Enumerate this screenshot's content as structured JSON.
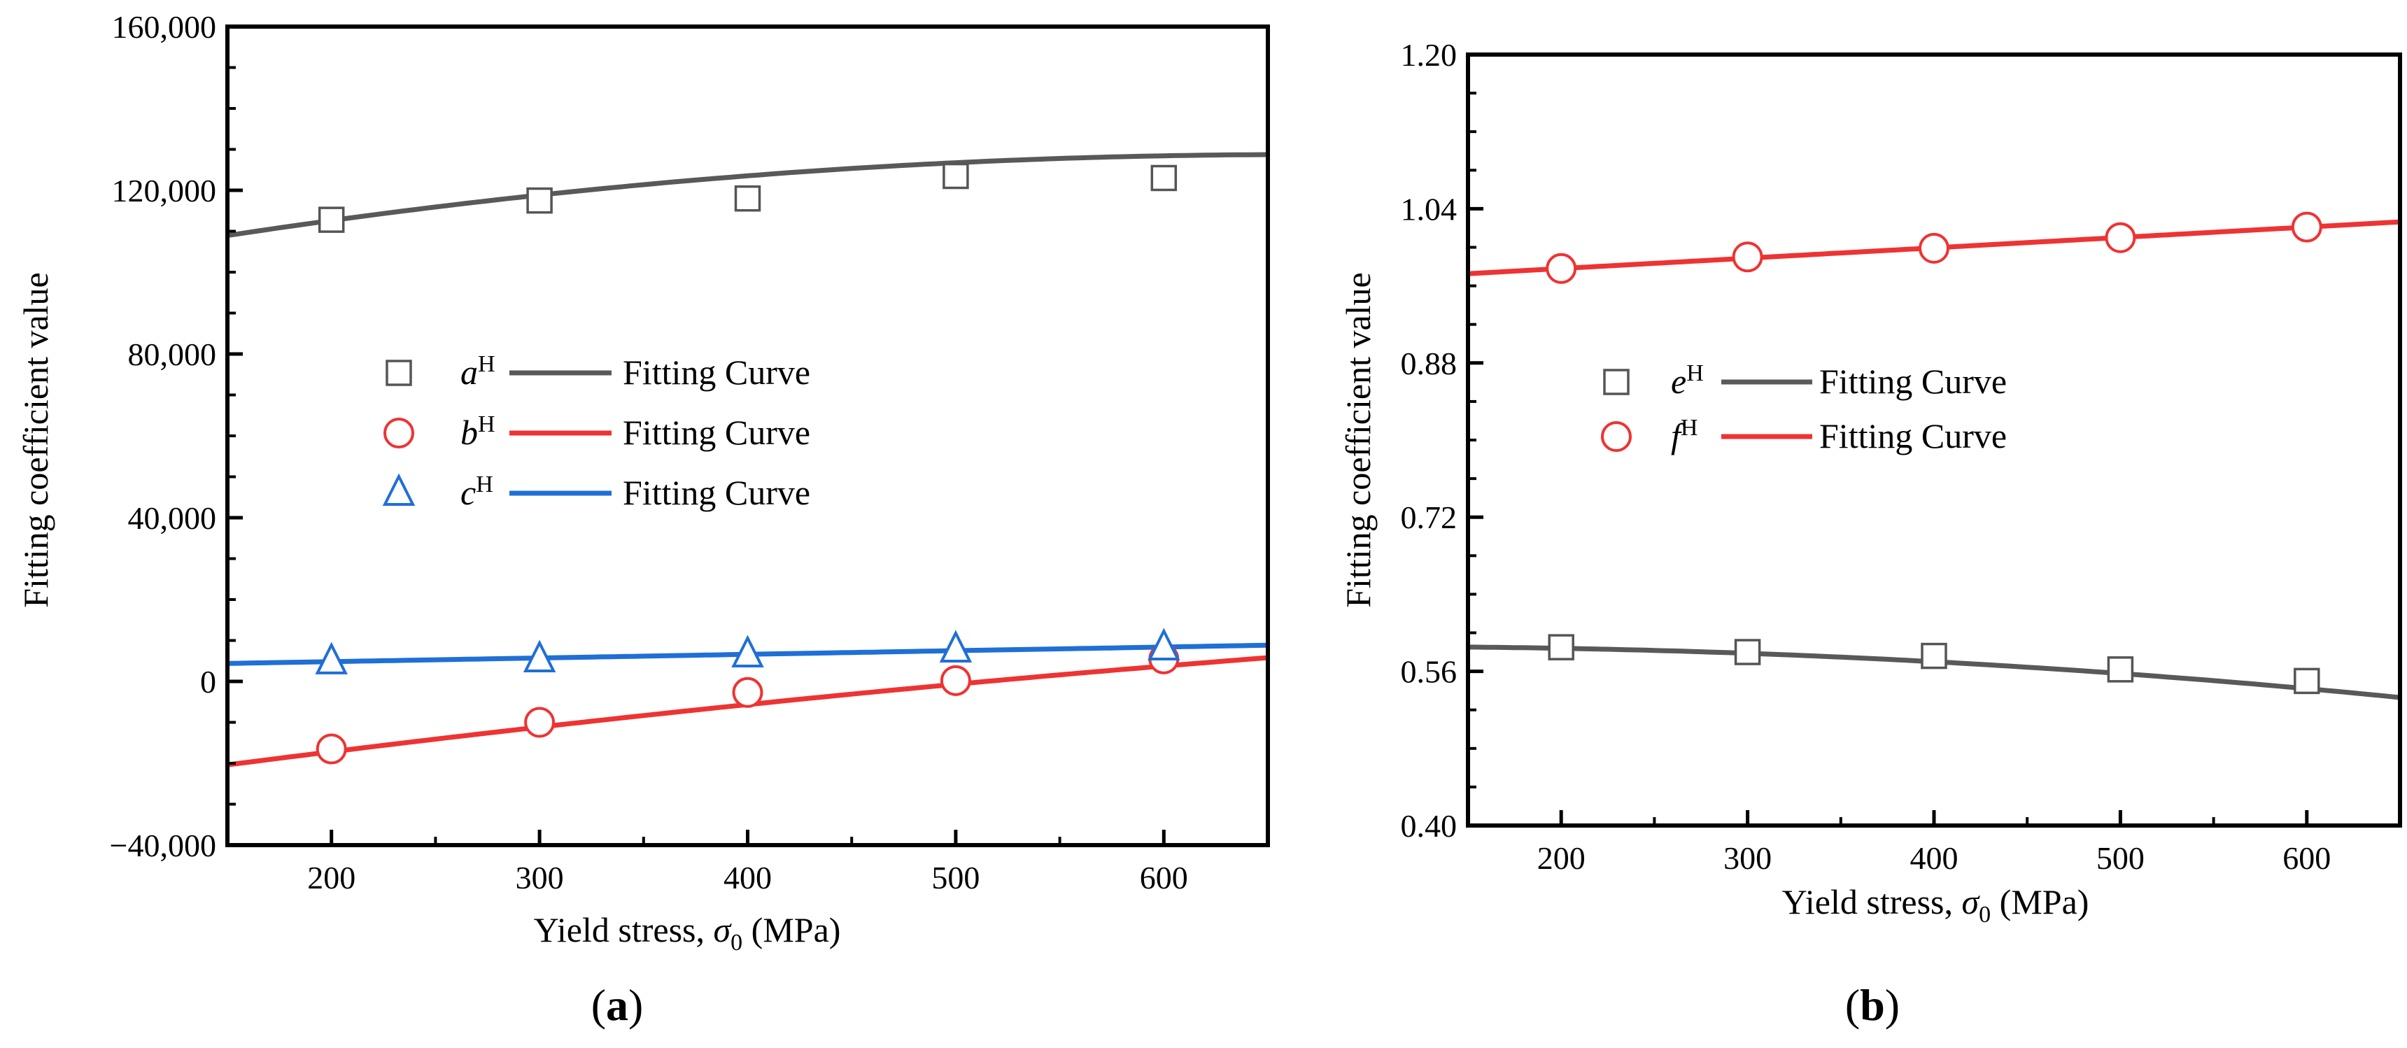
{
  "chart_data": [
    {
      "type": "scatter",
      "panel_label_parts": [
        "(",
        "a",
        ")"
      ],
      "xlabel": "Yield stress, σ0 (MPa)",
      "xlabel_parts": [
        "Yield stress, ",
        "σ",
        "0",
        " (MPa)"
      ],
      "ylabel": "Fitting coefficient value",
      "xlim": [
        150,
        650
      ],
      "ylim": [
        -40000,
        160000
      ],
      "x_ticks": [
        200,
        300,
        400,
        500,
        600
      ],
      "y_ticks": [
        -40000,
        0,
        40000,
        80000,
        120000,
        160000
      ],
      "y_tick_labels": [
        "−40,000",
        "0",
        "40,000",
        "80,000",
        "120,000",
        "160,000"
      ],
      "x_tick_labels": [
        "200",
        "300",
        "400",
        "500",
        "600"
      ],
      "legend_position": "center-left",
      "series": [
        {
          "name": "aH",
          "label_parts": [
            "a",
            "H"
          ],
          "fit_label": "Fitting Curve",
          "marker": "square",
          "color": "#595959",
          "x": [
            200,
            300,
            400,
            500,
            600
          ],
          "values": [
            112800,
            117500,
            118000,
            123500,
            123000
          ],
          "fit_poly": [
            95683,
            99.76,
            -0.0753
          ]
        },
        {
          "name": "bH",
          "label_parts": [
            "b",
            "H"
          ],
          "fit_label": "Fitting Curve",
          "marker": "circle",
          "color": "#ee3333",
          "x": [
            200,
            300,
            400,
            500,
            600
          ],
          "values": [
            -16500,
            -10000,
            -2700,
            200,
            5500
          ],
          "fit_poly": [
            -30810,
            73.4,
            -0.0263
          ]
        },
        {
          "name": "cH",
          "label_parts": [
            "c",
            "H"
          ],
          "fit_label": "Fitting Curve",
          "marker": "triangle",
          "color": "#1f6fd6",
          "x": [
            200,
            300,
            400,
            500,
            600
          ],
          "values": [
            4800,
            5300,
            6500,
            7700,
            8200
          ],
          "fit_poly": [
            3050,
            8.92,
            0
          ]
        }
      ]
    },
    {
      "type": "scatter",
      "panel_label_parts": [
        "(",
        "b",
        ")"
      ],
      "xlabel": "Yield stress, σ0 (MPa)",
      "xlabel_parts": [
        "Yield stress, ",
        "σ",
        "0",
        " (MPa)"
      ],
      "ylabel": "Fitting coefficient value",
      "xlim": [
        150,
        650
      ],
      "ylim": [
        0.4,
        1.2
      ],
      "x_ticks": [
        200,
        300,
        400,
        500,
        600
      ],
      "y_ticks": [
        0.4,
        0.56,
        0.72,
        0.88,
        1.04,
        1.2
      ],
      "y_tick_labels": [
        "0.40",
        "0.56",
        "0.72",
        "0.88",
        "1.04",
        "1.20"
      ],
      "x_tick_labels": [
        "200",
        "300",
        "400",
        "500",
        "600"
      ],
      "legend_position": "center-left",
      "series": [
        {
          "name": "eH",
          "label_parts": [
            "e",
            "H"
          ],
          "fit_label": "Fitting Curve",
          "marker": "square",
          "color": "#595959",
          "x": [
            200,
            300,
            400,
            500,
            600
          ],
          "values": [
            0.585,
            0.58,
            0.576,
            0.562,
            0.55
          ],
          "fit_poly": [
            0.5838,
            3.54e-05,
            -1.75e-07
          ]
        },
        {
          "name": "fH",
          "label_parts": [
            "f",
            "H"
          ],
          "fit_label": "Fitting Curve",
          "marker": "circle",
          "color": "#ee3333",
          "x": [
            200,
            300,
            400,
            500,
            600
          ],
          "values": [
            0.978,
            0.99,
            0.999,
            1.01,
            1.021
          ],
          "fit_poly": [
            0.9565,
            0.0001075,
            0
          ]
        }
      ]
    }
  ]
}
